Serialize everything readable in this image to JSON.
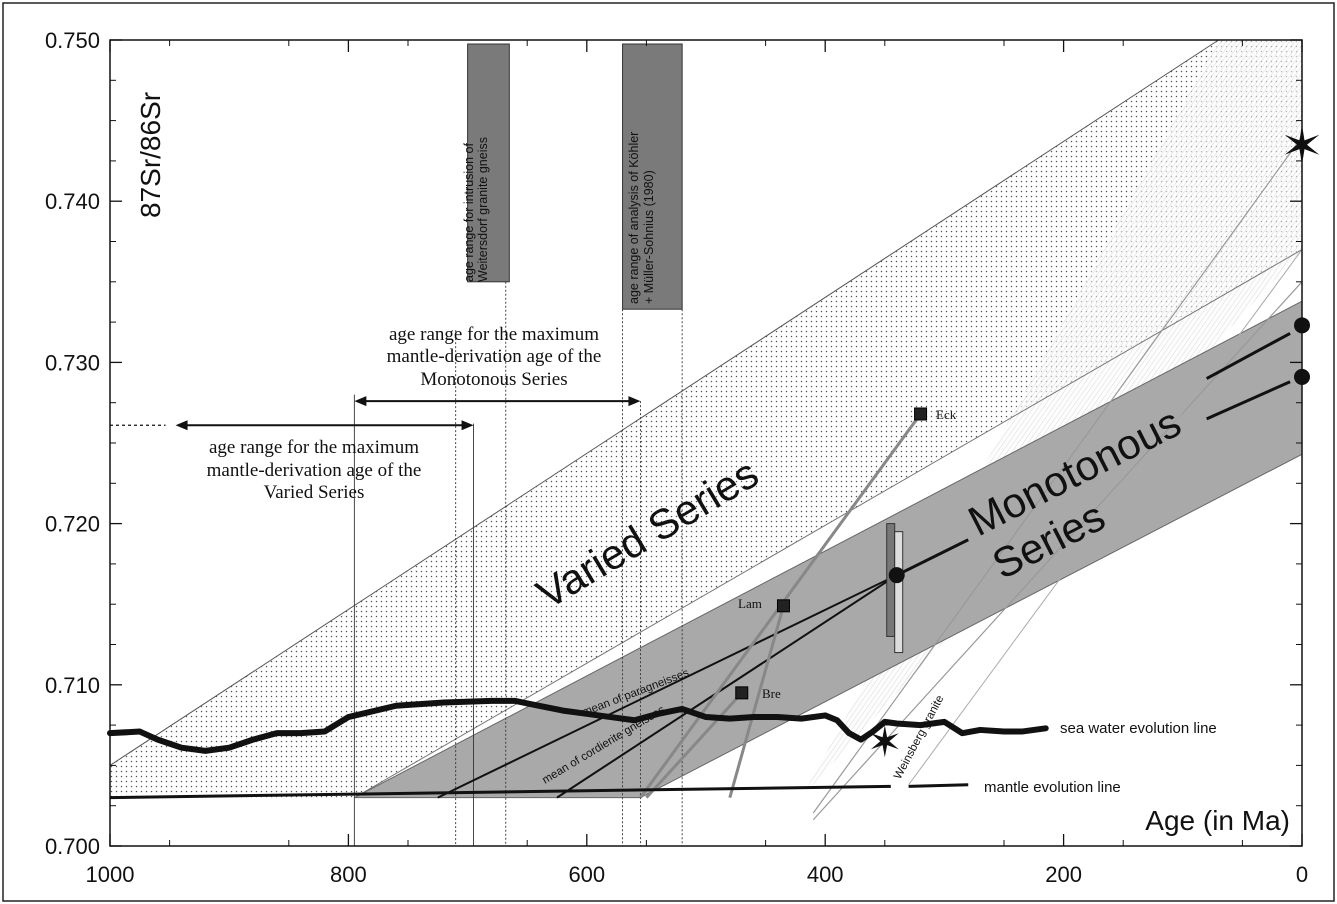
{
  "chart_data": {
    "type": "line",
    "title": "",
    "xlabel": "Age (in Ma)",
    "ylabel": "87Sr/86Sr",
    "xlim": [
      1000,
      0
    ],
    "ylim": [
      0.7,
      0.75
    ],
    "x_ticks": [
      1000,
      800,
      600,
      400,
      200,
      0
    ],
    "x_tick_labels": [
      "1000",
      "800",
      "600",
      "400",
      "200",
      "0"
    ],
    "y_ticks": [
      0.7,
      0.71,
      0.72,
      0.73,
      0.74,
      0.75
    ],
    "y_tick_labels": [
      "0.700",
      "0.710",
      "0.720",
      "0.730",
      "0.740",
      "0.750"
    ],
    "grid": false,
    "series": [
      {
        "name": "mantle evolution line",
        "x": [
          1000,
          280
        ],
        "y": [
          0.703,
          0.7038
        ]
      },
      {
        "name": "sea water evolution line",
        "x": [
          1000,
          975,
          960,
          940,
          920,
          900,
          880,
          860,
          840,
          820,
          800,
          760,
          720,
          680,
          660,
          640,
          620,
          600,
          580,
          560,
          540,
          520,
          500,
          480,
          460,
          440,
          420,
          400,
          390,
          380,
          370,
          360,
          350,
          340,
          320,
          300,
          285,
          270,
          250,
          235,
          215
        ],
        "y": [
          0.707,
          0.7071,
          0.7066,
          0.7061,
          0.7059,
          0.7061,
          0.7066,
          0.707,
          0.707,
          0.7071,
          0.708,
          0.7087,
          0.7089,
          0.709,
          0.709,
          0.7087,
          0.7084,
          0.7082,
          0.708,
          0.7078,
          0.7082,
          0.7085,
          0.708,
          0.7079,
          0.708,
          0.708,
          0.7079,
          0.7081,
          0.7078,
          0.707,
          0.7066,
          0.7071,
          0.7077,
          0.7076,
          0.7075,
          0.7077,
          0.707,
          0.7072,
          0.7071,
          0.7071,
          0.7073
        ]
      },
      {
        "name": "mean of paragneisses",
        "x": [
          725,
          340
        ],
        "y": [
          0.703,
          0.7168
        ]
      },
      {
        "name": "mean of cordierite gneisses",
        "x": [
          625,
          340
        ],
        "y": [
          0.703,
          0.7168
        ]
      }
    ],
    "bands": [
      {
        "name": "Varied Series",
        "upper": {
          "x": [
            1000,
            70
          ],
          "y": [
            0.705,
            0.75
          ]
        },
        "lower": {
          "x": [
            795,
            0
          ],
          "y": [
            0.703,
            0.737
          ]
        }
      },
      {
        "name": "Monotonous Series",
        "upper": {
          "x": [
            795,
            0
          ],
          "y": [
            0.703,
            0.7338
          ]
        },
        "lower": {
          "x": [
            555,
            0
          ],
          "y": [
            0.703,
            0.7243
          ]
        }
      }
    ],
    "samples": [
      {
        "label": "Eck",
        "x": 320,
        "y": 0.7268
      },
      {
        "label": "Lam",
        "x": 435,
        "y": 0.7149
      },
      {
        "label": "Bre",
        "x": 470,
        "y": 0.7095
      }
    ],
    "filled_circles": [
      {
        "x": 340,
        "y": 0.7168
      },
      {
        "x": 0,
        "y": 0.7323
      },
      {
        "x": 0,
        "y": 0.7291
      }
    ],
    "stars": [
      {
        "x": 0,
        "y": 0.7435
      },
      {
        "x": 350,
        "y": 0.7065
      }
    ],
    "age_bars": [
      {
        "label": "age range for intrusion of Weitersdorf granite gneiss",
        "x_range": [
          700,
          665
        ],
        "y_range": [
          0.735,
          0.75
        ]
      },
      {
        "label": "age range of analysis of Köhler + Müller-Sohnius (1980)",
        "x_range": [
          570,
          520
        ],
        "y_range": [
          0.7333,
          0.75
        ]
      }
    ],
    "range_arrows": [
      {
        "label": "age range for the maximum mantle-derivation age of the Monotonous Series",
        "x_range": [
          795,
          555
        ],
        "y": 0.7276
      },
      {
        "label": "age range for the maximum mantle-derivation age of the Varied Series",
        "x_range": [
          945,
          695
        ],
        "y": 0.7261
      }
    ],
    "annotations": {
      "varied": "Varied Series",
      "monotonous_1": "Monotonous",
      "monotonous_2": "Series",
      "mono_range": [
        "age range for the maximum",
        "mantle-derivation age of the",
        "Monotonous Series"
      ],
      "varied_range": [
        "age range for the maximum",
        "mantle-derivation age of the",
        "Varied Series"
      ],
      "intrusion": [
        "age range for intrusion of",
        "Weitersdorf granite gneiss"
      ],
      "analysis": [
        "age range of analysis of Köhler",
        "+ Müller-Sohnius (1980)"
      ],
      "paragneisses": "mean of paragneisses",
      "cordierite": "mean of cordierite gneisses",
      "weinsberg": "Weinsberg granite",
      "sea_water": "sea water evolution line",
      "mantle": "mantle evolution line"
    }
  }
}
